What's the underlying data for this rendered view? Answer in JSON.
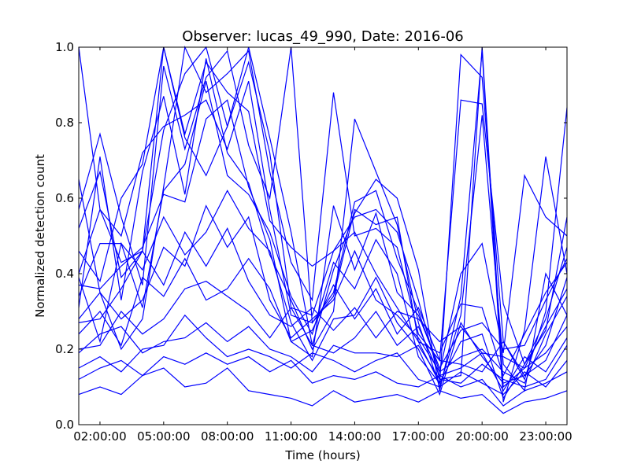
{
  "chart_data": {
    "type": "line",
    "title": "Observer: lucas_49_990, Date: 2016-06",
    "xlabel": "Time (hours)",
    "ylabel": "Normalized detection count",
    "xlim": [
      "01:00:00",
      "24:00:00"
    ],
    "ylim": [
      0.0,
      1.0
    ],
    "x_ticks": [
      "02:00:00",
      "05:00:00",
      "08:00:00",
      "11:00:00",
      "14:00:00",
      "17:00:00",
      "20:00:00",
      "23:00:00"
    ],
    "y_ticks": [
      "0.0",
      "0.2",
      "0.4",
      "0.6",
      "0.8",
      "1.0"
    ],
    "grid": false,
    "legend": "none",
    "line_color": "#0000ff",
    "x": [
      "01:00:00",
      "02:00:00",
      "03:00:00",
      "04:00:00",
      "05:00:00",
      "06:00:00",
      "07:00:00",
      "08:00:00",
      "09:00:00",
      "10:00:00",
      "11:00:00",
      "12:00:00",
      "13:00:00",
      "14:00:00",
      "15:00:00",
      "16:00:00",
      "17:00:00",
      "18:00:00",
      "19:00:00",
      "20:00:00",
      "21:00:00",
      "22:00:00",
      "23:00:00",
      "24:00:00"
    ],
    "series": [
      {
        "values": [
          1.0,
          0.57,
          0.43,
          0.46,
          1.0,
          0.77,
          0.96,
          0.88,
          0.83,
          0.54,
          0.47,
          0.42,
          0.46,
          0.55,
          0.57,
          0.51,
          0.33,
          0.12,
          0.13,
          1.0,
          0.1,
          0.15,
          0.26,
          0.36
        ]
      },
      {
        "values": [
          0.57,
          0.77,
          0.55,
          0.37,
          0.95,
          0.73,
          0.92,
          0.99,
          0.74,
          0.6,
          1.0,
          0.27,
          0.34,
          0.57,
          0.53,
          0.55,
          0.22,
          0.11,
          0.98,
          0.92,
          0.22,
          0.12,
          0.3,
          0.84
        ]
      },
      {
        "values": [
          0.65,
          0.35,
          0.2,
          0.28,
          0.63,
          1.0,
          0.88,
          0.93,
          0.99,
          0.67,
          0.43,
          0.33,
          0.88,
          0.5,
          0.52,
          0.47,
          0.24,
          0.17,
          0.86,
          0.85,
          0.32,
          0.16,
          0.25,
          0.55
        ]
      },
      {
        "values": [
          0.52,
          0.67,
          0.39,
          0.46,
          0.78,
          0.93,
          1.0,
          0.79,
          1.0,
          0.76,
          0.51,
          0.21,
          0.41,
          0.56,
          0.65,
          0.6,
          0.41,
          0.09,
          0.34,
          0.99,
          0.06,
          0.25,
          0.71,
          0.4
        ]
      },
      {
        "values": [
          0.4,
          0.57,
          0.5,
          0.72,
          0.79,
          0.82,
          0.86,
          0.73,
          0.91,
          0.57,
          0.29,
          0.27,
          0.35,
          0.59,
          0.62,
          0.44,
          0.3,
          0.14,
          0.4,
          0.48,
          0.19,
          0.66,
          0.55,
          0.5
        ]
      },
      {
        "values": [
          0.31,
          0.71,
          0.33,
          0.67,
          0.87,
          0.61,
          0.97,
          0.72,
          0.64,
          0.45,
          0.33,
          0.2,
          0.3,
          0.81,
          0.67,
          0.53,
          0.27,
          0.1,
          0.29,
          0.82,
          0.16,
          0.09,
          0.4,
          0.29
        ]
      },
      {
        "values": [
          0.46,
          0.38,
          0.6,
          0.69,
          1.0,
          0.76,
          0.66,
          0.79,
          0.96,
          0.72,
          0.31,
          0.29,
          0.46,
          0.51,
          0.4,
          0.31,
          0.22,
          0.19,
          0.32,
          0.31,
          0.13,
          0.24,
          0.35,
          0.43
        ]
      },
      {
        "values": [
          0.37,
          0.36,
          0.42,
          0.47,
          0.61,
          0.59,
          0.81,
          0.86,
          0.63,
          0.49,
          0.22,
          0.18,
          0.58,
          0.41,
          0.56,
          0.35,
          0.29,
          0.15,
          0.25,
          0.27,
          0.2,
          0.21,
          0.33,
          0.44
        ]
      },
      {
        "values": [
          0.39,
          0.22,
          0.48,
          0.31,
          0.62,
          0.69,
          0.91,
          0.66,
          0.61,
          0.51,
          0.34,
          0.24,
          0.43,
          0.36,
          0.49,
          0.4,
          0.18,
          0.11,
          0.22,
          0.24,
          0.07,
          0.16,
          0.28,
          0.47
        ]
      },
      {
        "values": [
          0.34,
          0.48,
          0.48,
          0.41,
          0.55,
          0.45,
          0.51,
          0.62,
          0.52,
          0.46,
          0.27,
          0.17,
          0.28,
          0.29,
          0.39,
          0.27,
          0.2,
          0.08,
          0.27,
          0.18,
          0.11,
          0.13,
          0.21,
          0.39
        ]
      },
      {
        "values": [
          0.28,
          0.35,
          0.28,
          0.33,
          0.47,
          0.42,
          0.58,
          0.47,
          0.55,
          0.33,
          0.23,
          0.28,
          0.33,
          0.46,
          0.33,
          0.29,
          0.23,
          0.14,
          0.18,
          0.2,
          0.14,
          0.11,
          0.24,
          0.34
        ]
      },
      {
        "values": [
          0.27,
          0.28,
          0.36,
          0.46,
          0.37,
          0.51,
          0.42,
          0.52,
          0.38,
          0.29,
          0.26,
          0.31,
          0.25,
          0.31,
          0.23,
          0.3,
          0.28,
          0.22,
          0.26,
          0.19,
          0.18,
          0.15,
          0.19,
          0.26
        ]
      },
      {
        "values": [
          0.24,
          0.3,
          0.21,
          0.39,
          0.34,
          0.44,
          0.33,
          0.36,
          0.44,
          0.36,
          0.22,
          0.25,
          0.37,
          0.28,
          0.36,
          0.24,
          0.31,
          0.17,
          0.16,
          0.14,
          0.22,
          0.13,
          0.17,
          0.29
        ]
      },
      {
        "values": [
          0.2,
          0.21,
          0.3,
          0.24,
          0.28,
          0.36,
          0.38,
          0.34,
          0.3,
          0.23,
          0.31,
          0.21,
          0.19,
          0.23,
          0.3,
          0.21,
          0.26,
          0.13,
          0.15,
          0.19,
          0.09,
          0.18,
          0.14,
          0.23
        ]
      },
      {
        "values": [
          0.19,
          0.24,
          0.26,
          0.19,
          0.22,
          0.23,
          0.27,
          0.22,
          0.26,
          0.2,
          0.18,
          0.14,
          0.21,
          0.19,
          0.19,
          0.18,
          0.21,
          0.12,
          0.11,
          0.16,
          0.12,
          0.1,
          0.12,
          0.21
        ]
      },
      {
        "values": [
          0.15,
          0.18,
          0.14,
          0.2,
          0.21,
          0.29,
          0.23,
          0.18,
          0.2,
          0.18,
          0.15,
          0.19,
          0.17,
          0.14,
          0.17,
          0.19,
          0.12,
          0.1,
          0.14,
          0.11,
          0.08,
          0.14,
          0.1,
          0.17
        ]
      },
      {
        "values": [
          0.12,
          0.15,
          0.17,
          0.13,
          0.18,
          0.16,
          0.19,
          0.16,
          0.18,
          0.14,
          0.17,
          0.11,
          0.13,
          0.12,
          0.14,
          0.11,
          0.1,
          0.13,
          0.1,
          0.12,
          0.05,
          0.09,
          0.11,
          0.14
        ]
      },
      {
        "values": [
          0.08,
          0.1,
          0.08,
          0.13,
          0.15,
          0.1,
          0.11,
          0.15,
          0.09,
          0.08,
          0.07,
          0.05,
          0.09,
          0.06,
          0.07,
          0.08,
          0.06,
          0.09,
          0.07,
          0.08,
          0.03,
          0.06,
          0.07,
          0.09
        ]
      }
    ]
  }
}
